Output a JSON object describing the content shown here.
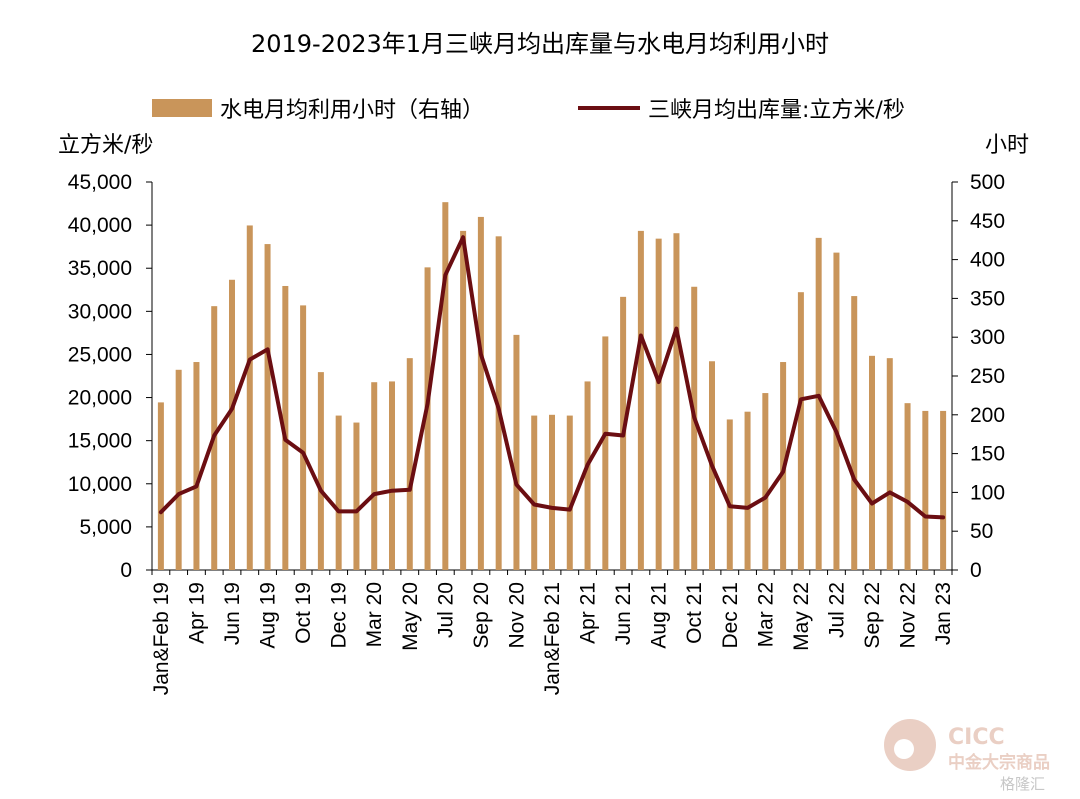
{
  "chart_data": {
    "type": "bar",
    "title": "2019-2023年1月三峡月均出库量与水电月均利用小时",
    "left_axis_label": "立方米/秒",
    "right_axis_label": "小时",
    "y_left_ticks": [
      "45,000",
      "40,000",
      "35,000",
      "30,000",
      "25,000",
      "20,000",
      "15,000",
      "10,000",
      "5,000",
      "0"
    ],
    "y_right_ticks": [
      "500",
      "450",
      "400",
      "350",
      "300",
      "250",
      "200",
      "150",
      "100",
      "50",
      "0"
    ],
    "ylim_left": [
      0,
      45000
    ],
    "ylim_right": [
      0,
      500
    ],
    "x_labels": [
      "Jan&Feb 19",
      "Apr 19",
      "Jun 19",
      "Aug 19",
      "Oct 19",
      "Dec 19",
      "Mar 20",
      "May 20",
      "Jul 20",
      "Sep 20",
      "Nov 20",
      "Jan&Feb 21",
      "Apr 21",
      "Jun 21",
      "Aug 21",
      "Oct 21",
      "Dec 21",
      "Mar 22",
      "May 22",
      "Jul 22",
      "Sep 22",
      "Nov 22",
      "Jan 23"
    ],
    "categories": [
      "Jan&Feb 19",
      "Mar 19",
      "Apr 19",
      "May 19",
      "Jun 19",
      "Jul 19",
      "Aug 19",
      "Sep 19",
      "Oct 19",
      "Nov 19",
      "Dec 19",
      "Jan&Feb 20",
      "Mar 20",
      "Apr 20",
      "May 20",
      "Jun 20",
      "Jul 20",
      "Aug 20",
      "Sep 20",
      "Oct 20",
      "Nov 20",
      "Dec 20",
      "Jan&Feb 21",
      "Mar 21",
      "Apr 21",
      "May 21",
      "Jun 21",
      "Jul 21",
      "Aug 21",
      "Sep 21",
      "Oct 21",
      "Nov 21",
      "Dec 21",
      "Jan&Feb 22",
      "Mar 22",
      "Apr 22",
      "May 22",
      "Jun 22",
      "Jul 22",
      "Aug 22",
      "Sep 22",
      "Oct 22",
      "Nov 22",
      "Dec 22",
      "Jan 23"
    ],
    "series": [
      {
        "name": "水电月均利用小时（右轴）",
        "type": "bar",
        "axis": "right",
        "color": "#C9955A",
        "values": [
          216,
          258,
          268,
          340,
          374,
          444,
          420,
          366,
          341,
          255,
          199,
          190,
          242,
          243,
          273,
          390,
          474,
          437,
          455,
          430,
          303,
          199,
          200,
          199,
          243,
          301,
          352,
          437,
          427,
          434,
          365,
          269,
          194,
          204,
          228,
          268,
          358,
          428,
          409,
          353,
          276,
          273,
          215,
          205,
          205
        ]
      },
      {
        "name": "三峡月均出库量:立方米/秒",
        "type": "line",
        "axis": "left",
        "color": "#6B0E12",
        "values": [
          6700,
          8800,
          9700,
          15600,
          18700,
          24400,
          25600,
          15100,
          13600,
          9200,
          6800,
          6800,
          8800,
          9200,
          9300,
          19300,
          34200,
          38600,
          25000,
          18700,
          9900,
          7600,
          7200,
          7000,
          12200,
          15800,
          15600,
          27200,
          21800,
          28000,
          17700,
          12100,
          7400,
          7200,
          8400,
          11400,
          19800,
          20200,
          16000,
          10500,
          7700,
          9000,
          7900,
          6200,
          6100
        ]
      }
    ]
  },
  "watermark": {
    "brand": "CICC",
    "subtitle": "中金大宗商品",
    "site": "格隆汇"
  }
}
